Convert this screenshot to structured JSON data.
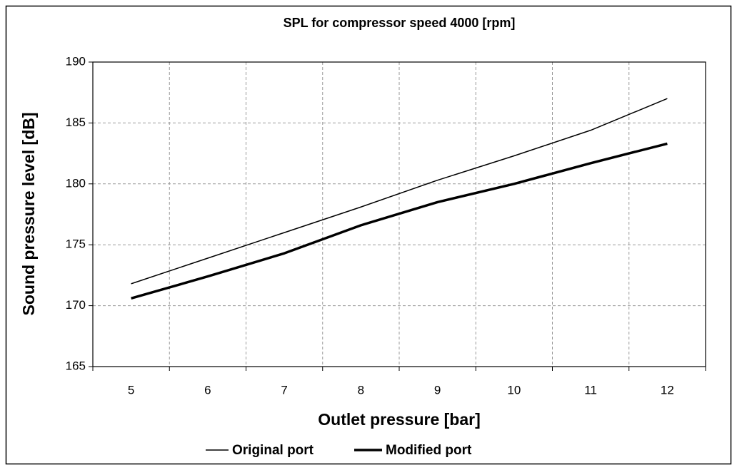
{
  "chart_data": {
    "type": "line",
    "title": "SPL for compressor speed 4000 [rpm]",
    "xlabel": "Outlet pressure [bar]",
    "ylabel": "Sound pressure level [dB]",
    "categories": [
      "5",
      "6",
      "7",
      "8",
      "9",
      "10",
      "11",
      "12"
    ],
    "series": [
      {
        "name": "Original port",
        "color": "#000000",
        "line_width": 1.5,
        "values": [
          171.8,
          173.9,
          176.0,
          178.1,
          180.3,
          182.3,
          184.4,
          187.0
        ]
      },
      {
        "name": "Modified port",
        "color": "#000000",
        "line_width": 3.5,
        "values": [
          170.6,
          172.4,
          174.3,
          176.6,
          178.5,
          180.0,
          181.7,
          183.3
        ]
      }
    ],
    "ylim": [
      165,
      190
    ],
    "yticks": [
      165,
      170,
      175,
      180,
      185,
      190
    ],
    "grid": true,
    "legend": "bottom"
  }
}
